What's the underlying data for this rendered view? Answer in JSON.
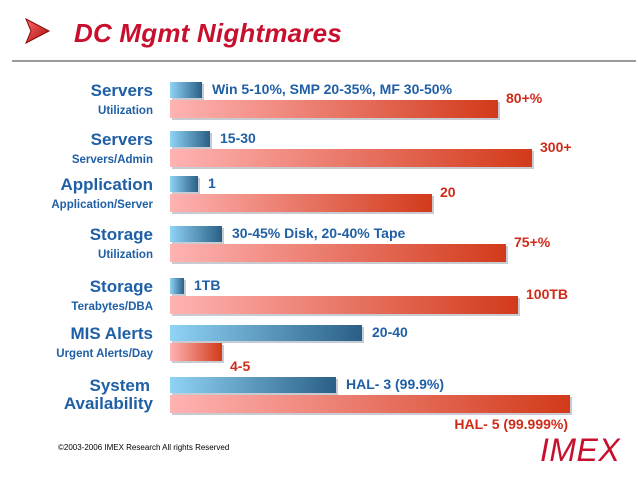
{
  "slide": {
    "title": "DC Mgmt Nightmares",
    "copyright": "©2003-2006  IMEX Research All rights Reserved",
    "brand": "IMEX"
  },
  "colors": {
    "title": "#c8102e",
    "label": "#1f5fa6",
    "blue_bar_light": "#8fd3f5",
    "blue_bar_dark": "#2a5f86",
    "red_bar_light": "#ffb3b3",
    "red_bar_dark": "#d23a1a",
    "red_text": "#d02b1a"
  },
  "chart_data": {
    "type": "bar",
    "orientation": "horizontal",
    "note": "paired bars per category; values shown as text labels only",
    "categories": [
      {
        "label": "Servers",
        "sublabel": "Utilization",
        "blue_text": "Win 5-10%, SMP 20-35%, MF 30-50%",
        "red_text": "80+%",
        "blue_len": 0.08,
        "red_len": 0.82
      },
      {
        "label": "Servers",
        "sublabel": "Servers/Admin",
        "blue_text": "15-30",
        "red_text": "300+",
        "blue_len": 0.1,
        "red_len": 0.905
      },
      {
        "label": "Application",
        "sublabel": "Application/Server",
        "blue_text": "1",
        "red_text": "20",
        "blue_len": 0.07,
        "red_len": 0.655
      },
      {
        "label": "Storage",
        "sublabel": "Utilization",
        "blue_text": "30-45% Disk, 20-40% Tape",
        "red_text": "75+%",
        "blue_len": 0.13,
        "red_len": 0.84
      },
      {
        "label": "Storage",
        "sublabel": "Terabytes/DBA",
        "blue_text": "1TB",
        "red_text": "100TB",
        "blue_len": 0.035,
        "red_len": 0.87
      },
      {
        "label": "MIS Alerts",
        "sublabel": "Urgent Alerts/Day",
        "blue_text": "20-40",
        "red_text": "4-5",
        "blue_len": 0.48,
        "red_len": 0.13
      },
      {
        "label": "System",
        "sublabel": "Availability",
        "blue_text": "HAL- 3 (99.9%)",
        "red_text": "HAL- 5 (99.999%)",
        "blue_len": 0.415,
        "red_len": 1.0
      }
    ]
  }
}
